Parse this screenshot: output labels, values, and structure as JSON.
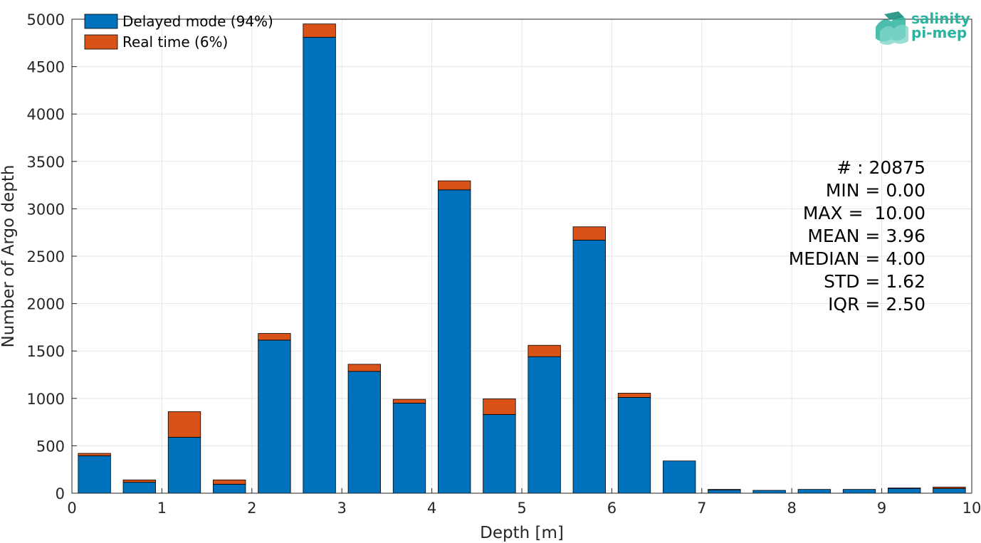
{
  "chart_data": {
    "type": "bar",
    "stacked": true,
    "bin_edges": [
      0,
      0.5,
      1,
      1.5,
      2,
      2.5,
      3,
      3.5,
      4,
      4.5,
      5,
      5.5,
      6,
      6.5,
      7,
      7.5,
      8,
      8.5,
      9,
      9.5,
      10
    ],
    "series": [
      {
        "name": "Delayed mode (94%)",
        "color": "#0072bd",
        "values": [
          395,
          115,
          590,
          95,
          1615,
          4810,
          1285,
          950,
          3200,
          830,
          1440,
          2670,
          1010,
          340,
          35,
          30,
          40,
          40,
          50,
          50
        ]
      },
      {
        "name": "Real time (6%)",
        "color": "#d95319",
        "values": [
          25,
          25,
          270,
          45,
          70,
          140,
          75,
          40,
          95,
          165,
          120,
          140,
          45,
          0,
          5,
          0,
          0,
          0,
          5,
          15
        ]
      }
    ],
    "xlabel": "Depth [m]",
    "ylabel": "Number of Argo depth",
    "xlim": [
      0,
      10
    ],
    "ylim": [
      0,
      5000
    ],
    "xticks": [
      0,
      1,
      2,
      3,
      4,
      5,
      6,
      7,
      8,
      9,
      10
    ],
    "yticks": [
      0,
      500,
      1000,
      1500,
      2000,
      2500,
      3000,
      3500,
      4000,
      4500,
      5000
    ],
    "grid": true,
    "legend_position": "top-left",
    "stats": [
      "# : 20875",
      "MIN = 0.00",
      "MAX =  10.00",
      "MEAN = 3.96",
      "MEDIAN = 4.00",
      "STD = 1.62",
      "IQR = 2.50"
    ]
  },
  "logo": {
    "line1": "salinity",
    "line2": "pi-mep",
    "color": "#2bb3a0"
  }
}
